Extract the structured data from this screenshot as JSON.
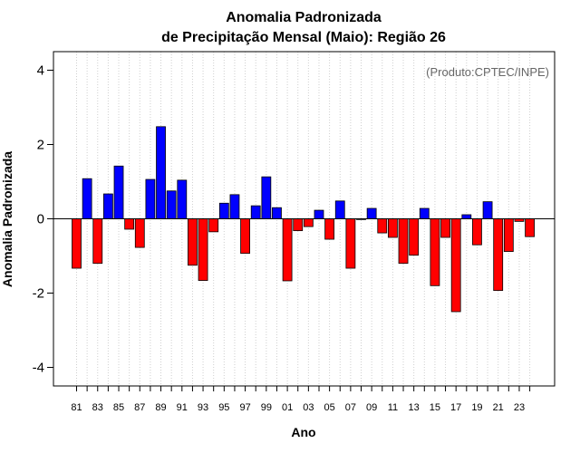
{
  "chart_data": {
    "type": "bar",
    "title_line1": "Anomalia Padronizada",
    "title_line2": "de Precipitação Mensal (Maio): Região 26",
    "xlabel": "Ano",
    "ylabel": "Anomalia Padronizada",
    "source_note": "(Produto:CPTEC/INPE)",
    "ylim": [
      -4.5,
      4.5
    ],
    "yticks": [
      -4,
      -2,
      0,
      2,
      4
    ],
    "ytick_labels": [
      "-4",
      "-2",
      "0",
      "2",
      "4"
    ],
    "grid": "vertical dotted",
    "legend": "none",
    "positive_color": "#0000ff",
    "negative_color": "#ff0000",
    "categories": [
      "81",
      "82",
      "83",
      "84",
      "85",
      "86",
      "87",
      "88",
      "89",
      "90",
      "91",
      "92",
      "93",
      "94",
      "95",
      "96",
      "97",
      "98",
      "99",
      "00",
      "01",
      "02",
      "03",
      "04",
      "05",
      "06",
      "07",
      "08",
      "09",
      "10",
      "11",
      "12",
      "13",
      "14",
      "15",
      "16",
      "17",
      "18",
      "19",
      "20",
      "21",
      "22",
      "23",
      "24"
    ],
    "values": [
      -1.33,
      1.08,
      -1.2,
      0.67,
      1.42,
      -0.28,
      -0.77,
      1.06,
      2.48,
      0.75,
      1.04,
      -1.25,
      -1.66,
      -0.35,
      0.42,
      0.65,
      -0.93,
      0.35,
      1.13,
      0.3,
      -1.67,
      -0.32,
      -0.21,
      0.23,
      -0.55,
      0.48,
      -1.33,
      -0.02,
      0.28,
      -0.38,
      -0.5,
      -1.2,
      -0.98,
      0.28,
      -1.8,
      -0.5,
      -2.5,
      0.11,
      -0.7,
      0.46,
      -1.93,
      -0.88,
      -0.07,
      -0.48
    ],
    "xtick_labels": [
      "81",
      "83",
      "85",
      "87",
      "89",
      "91",
      "93",
      "95",
      "97",
      "99",
      "01",
      "03",
      "05",
      "07",
      "09",
      "11",
      "13",
      "15",
      "17",
      "19",
      "21",
      "23"
    ]
  }
}
